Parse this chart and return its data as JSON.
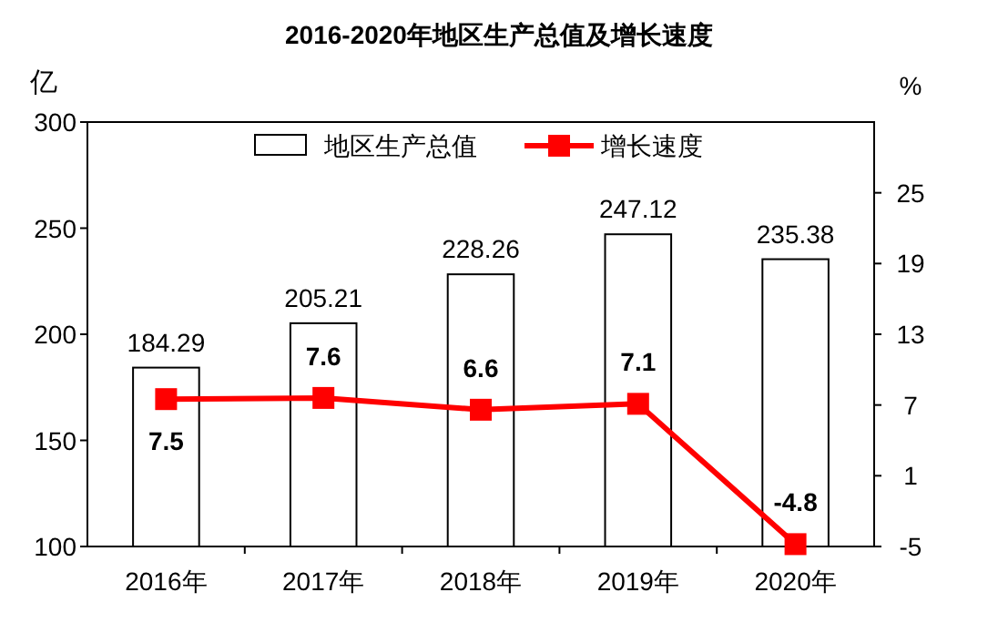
{
  "chart_data": {
    "type": "bar",
    "title": "2016-2020年地区生产总值及增长速度",
    "ylabel": "亿",
    "y2label": "%",
    "categories": [
      "2016年",
      "2017年",
      "2018年",
      "2019年",
      "2020年"
    ],
    "series": [
      {
        "name": "地区生产总值",
        "color": "#ffffff",
        "values": [
          184.29,
          205.21,
          228.26,
          247.12,
          235.38
        ]
      },
      {
        "name": "增长速度",
        "type": "line",
        "axis": "y2",
        "color": "#ff0000",
        "marker": "square",
        "values": [
          7.5,
          7.6,
          6.6,
          7.1,
          -4.8
        ]
      }
    ],
    "ylim": [
      100,
      300
    ],
    "yticks": [
      100,
      150,
      200,
      250,
      300
    ],
    "y2lim": [
      -5,
      31
    ],
    "y2ticks": [
      -5,
      1,
      7,
      13,
      19,
      25
    ],
    "data_labels": true,
    "legend": "top",
    "grid": false
  }
}
